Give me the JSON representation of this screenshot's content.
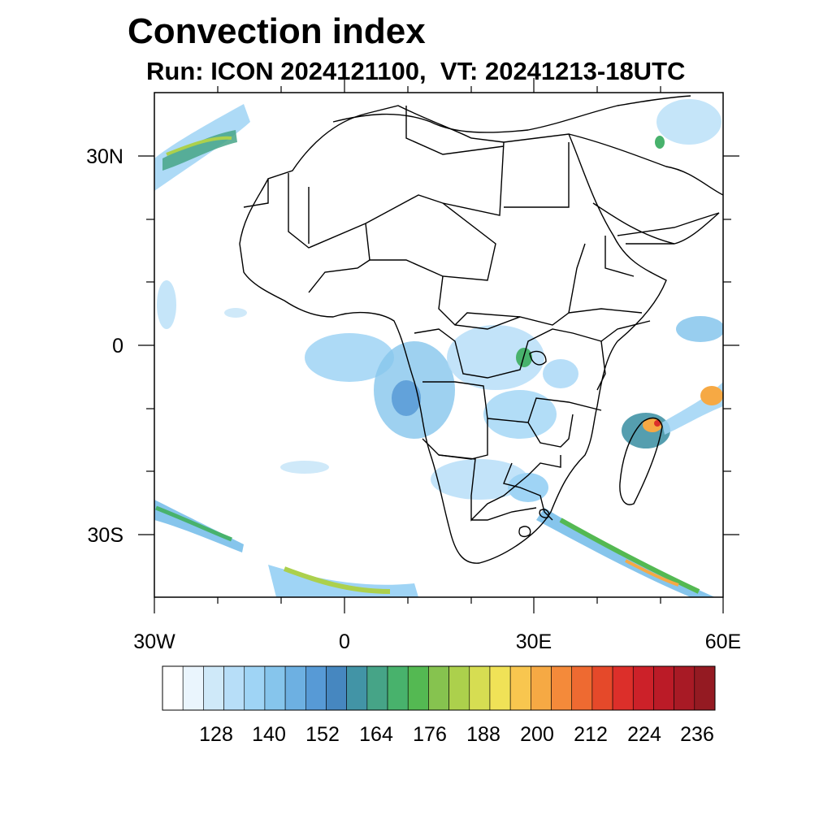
{
  "title": "Convection index",
  "subtitle": "Run: ICON 2024121100,  VT: 20241213-18UTC",
  "lat_labels": [
    "30N",
    "0",
    "30S"
  ],
  "lon_labels": [
    "30W",
    "0",
    "30E",
    "60E"
  ],
  "colorbar": {
    "labels": [
      "128",
      "140",
      "152",
      "164",
      "176",
      "188",
      "200",
      "212",
      "224",
      "236"
    ],
    "colors": [
      "#ffffff",
      "#eaf5fd",
      "#cfe9f9",
      "#b7def8",
      "#9fd4f5",
      "#86c5ec",
      "#6db0e2",
      "#579ad6",
      "#4687c0",
      "#4294a6",
      "#46a487",
      "#48b26c",
      "#54b952",
      "#86c34f",
      "#acd04c",
      "#d6dd52",
      "#f0e257",
      "#f8c64f",
      "#f6a944",
      "#f48a3a",
      "#ee6a31",
      "#e5492a",
      "#dc2f2a",
      "#cc2129",
      "#bb1b27",
      "#a81a25",
      "#941a22"
    ]
  }
}
